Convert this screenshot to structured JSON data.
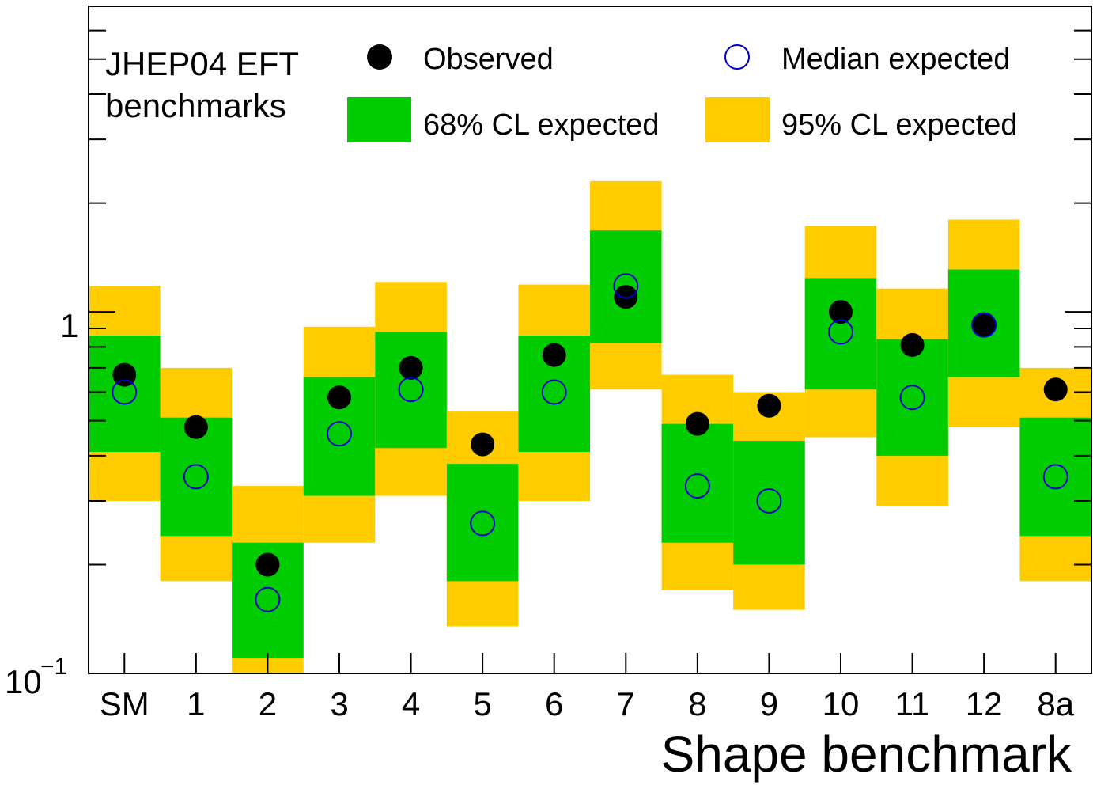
{
  "chart_data": {
    "type": "scatter",
    "y_scale": "log",
    "ylim": [
      0.1,
      7.0
    ],
    "y_tick_labels": [
      "1",
      "10",
      "−1"
    ],
    "categories": [
      "SM",
      "1",
      "2",
      "3",
      "4",
      "5",
      "6",
      "7",
      "8",
      "9",
      "10",
      "11",
      "12",
      "8a"
    ],
    "xlabel": "Shape benchmark",
    "ylabel": "",
    "header_lines": [
      "JHEP04 EFT",
      "benchmarks"
    ],
    "legend": {
      "observed": "Observed",
      "expected": "Median expected",
      "band68": "68% CL expected",
      "band95": "95% CL expected",
      "placement": "top"
    },
    "series": [
      {
        "name": "Observed",
        "values": [
          0.67,
          0.48,
          0.2,
          0.58,
          0.7,
          0.43,
          0.76,
          1.1,
          0.49,
          0.55,
          1.0,
          0.81,
          0.92,
          0.61
        ]
      },
      {
        "name": "Median expected",
        "values": [
          0.6,
          0.35,
          0.16,
          0.46,
          0.61,
          0.26,
          0.6,
          1.18,
          0.33,
          0.3,
          0.88,
          0.58,
          0.92,
          0.35
        ]
      },
      {
        "name": "68% CL expected",
        "low": [
          0.41,
          0.24,
          0.11,
          0.31,
          0.42,
          0.18,
          0.41,
          0.82,
          0.23,
          0.2,
          0.61,
          0.4,
          0.66,
          0.24
        ],
        "high": [
          0.86,
          0.51,
          0.23,
          0.66,
          0.88,
          0.38,
          0.86,
          1.68,
          0.49,
          0.44,
          1.24,
          0.84,
          1.31,
          0.51
        ]
      },
      {
        "name": "95% CL expected",
        "low": [
          0.3,
          0.18,
          0.08,
          0.23,
          0.31,
          0.135,
          0.3,
          0.61,
          0.17,
          0.15,
          0.45,
          0.29,
          0.48,
          0.18
        ],
        "high": [
          1.18,
          0.7,
          0.33,
          0.91,
          1.21,
          0.53,
          1.19,
          2.3,
          0.67,
          0.6,
          1.73,
          1.16,
          1.8,
          0.7
        ]
      }
    ],
    "colors": {
      "band68": "#00cc00",
      "band95": "#ffcc00",
      "observed": "#000000",
      "expected": "#0000cc"
    }
  }
}
